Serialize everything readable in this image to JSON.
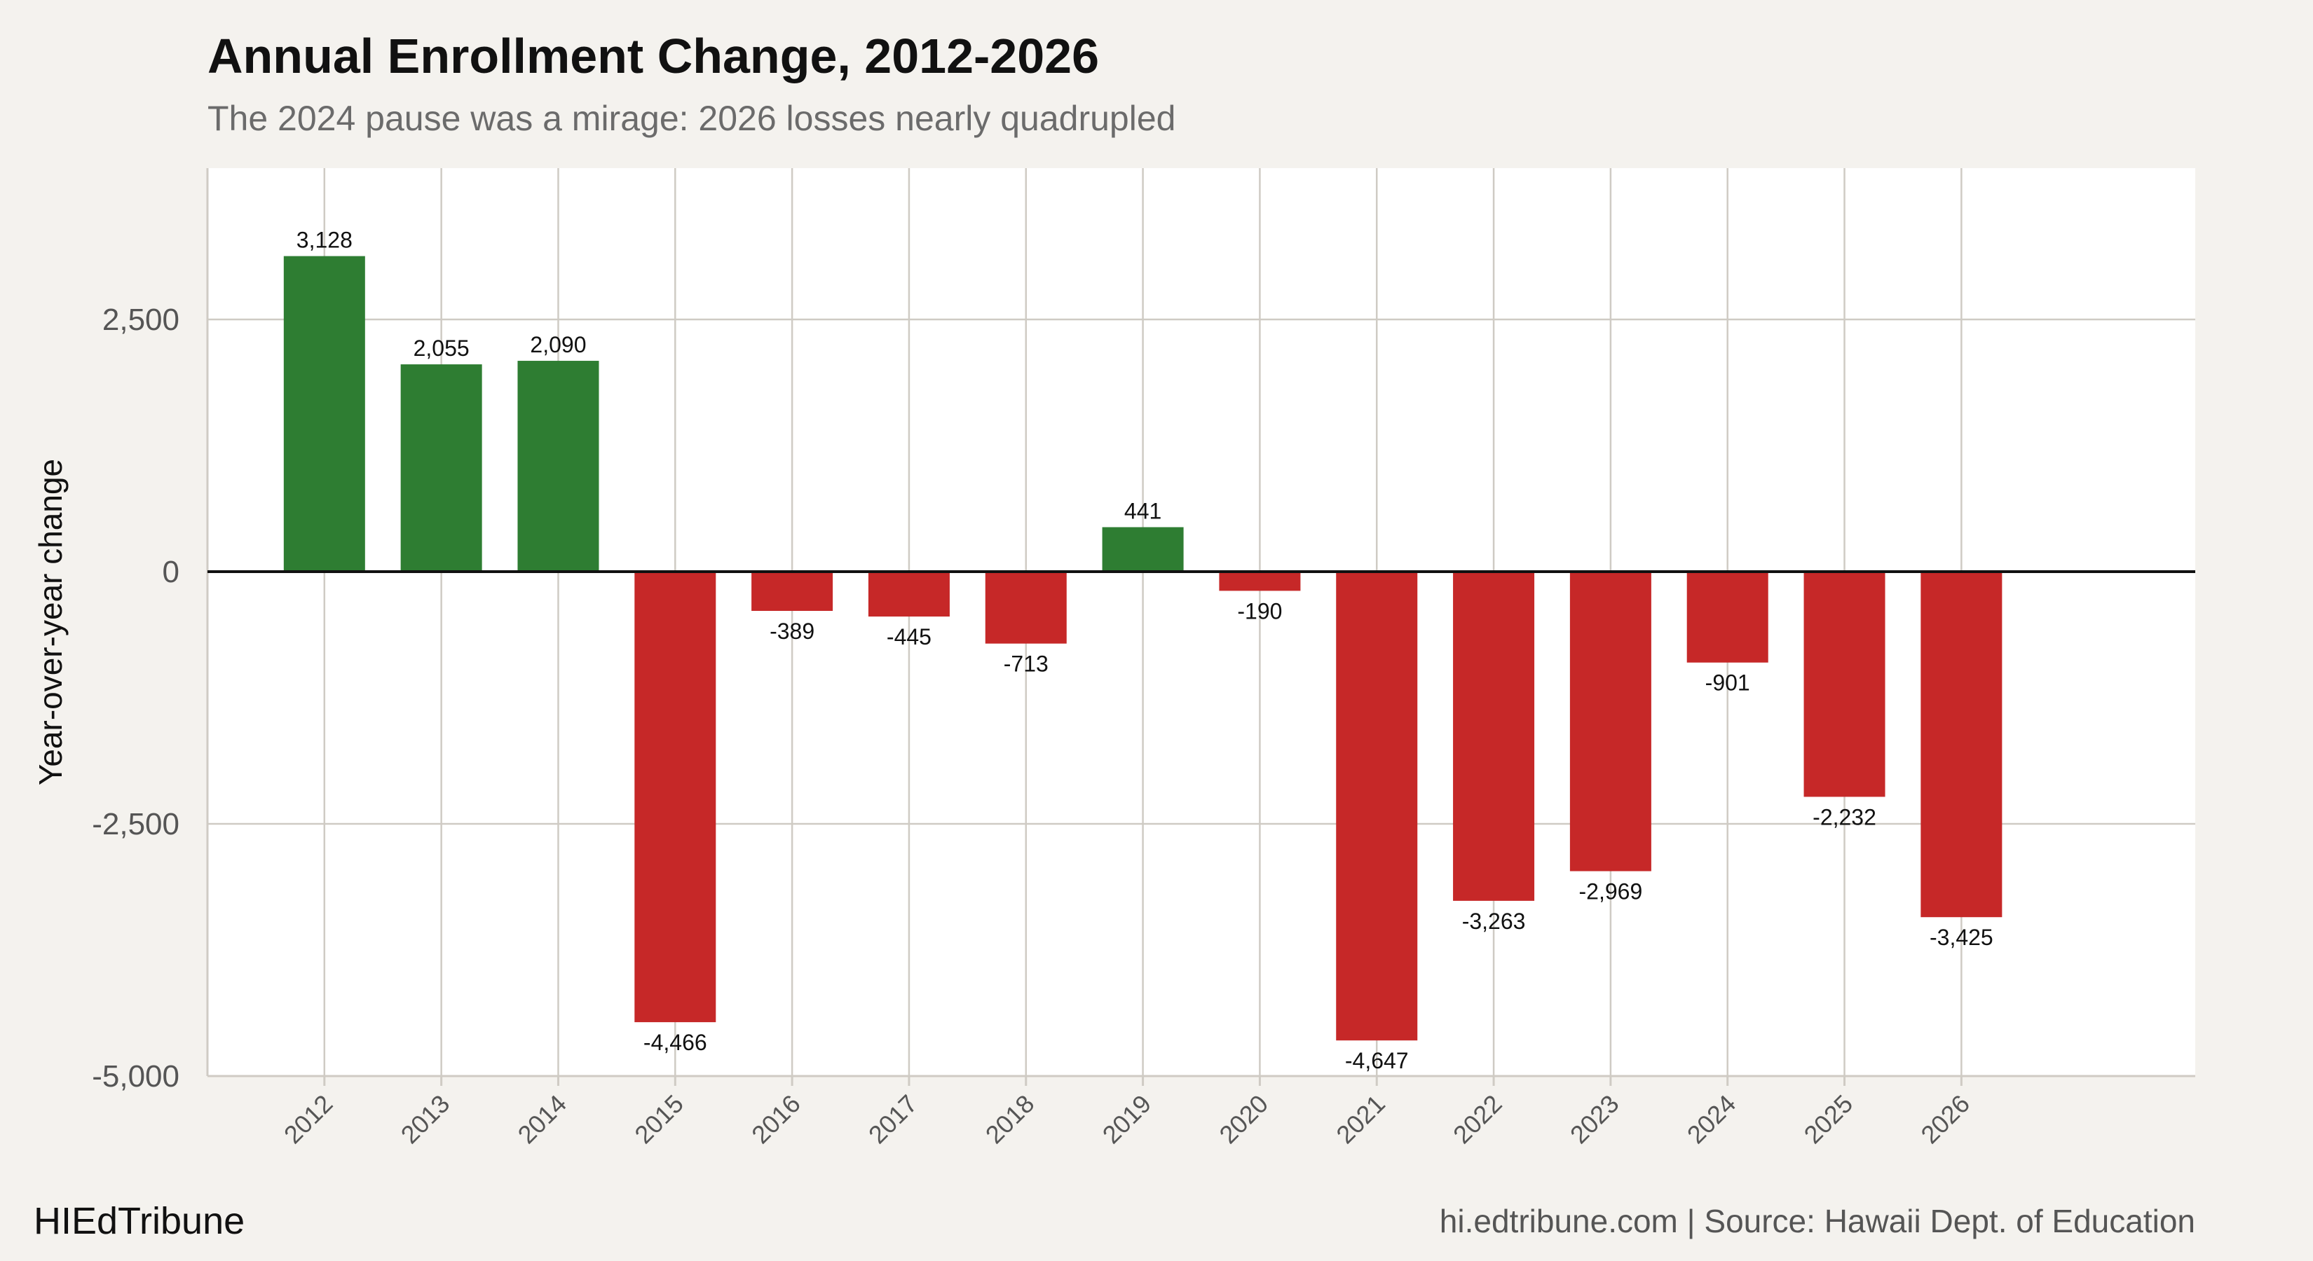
{
  "header": {
    "title": "Annual Enrollment Change, 2012-2026",
    "subtitle": "The 2024 pause was a mirage: 2026 losses nearly quadrupled"
  },
  "footer": {
    "brand": "HIEdTribune",
    "source": "hi.edtribune.com | Source: Hawaii Dept. of Education"
  },
  "chart_data": {
    "type": "bar",
    "title": "Annual Enrollment Change, 2012-2026",
    "subtitle": "The 2024 pause was a mirage: 2026 losses nearly quadrupled",
    "xlabel": "",
    "ylabel": "Year-over-year change",
    "categories": [
      "2012",
      "2013",
      "2014",
      "2015",
      "2016",
      "2017",
      "2018",
      "2019",
      "2020",
      "2021",
      "2022",
      "2023",
      "2024",
      "2025",
      "2026"
    ],
    "values": [
      3128,
      2055,
      2090,
      -4466,
      -389,
      -445,
      -713,
      441,
      -190,
      -4647,
      -3263,
      -2969,
      -901,
      -2232,
      -3425
    ],
    "value_labels": [
      "3,128",
      "2,055",
      "2,090",
      "-4,466",
      "-389",
      "-445",
      "-713",
      "441",
      "-190",
      "-4,647",
      "-3,263",
      "-2,969",
      "-901",
      "-2,232",
      "-3,425"
    ],
    "ylim": [
      -5000,
      4000
    ],
    "yticks": [
      -5000,
      -2500,
      0,
      2500
    ],
    "ytick_labels": [
      "-5,000",
      "-2,500",
      "0",
      "2,500"
    ],
    "x_extent": [
      2011,
      2028
    ],
    "grid": true,
    "colors": {
      "positive": "#2e7d32",
      "negative": "#c62828",
      "panel": "#ffffff",
      "background": "#f4f2ee",
      "grid": "#cfcbc4",
      "zero_line": "#111111"
    }
  }
}
